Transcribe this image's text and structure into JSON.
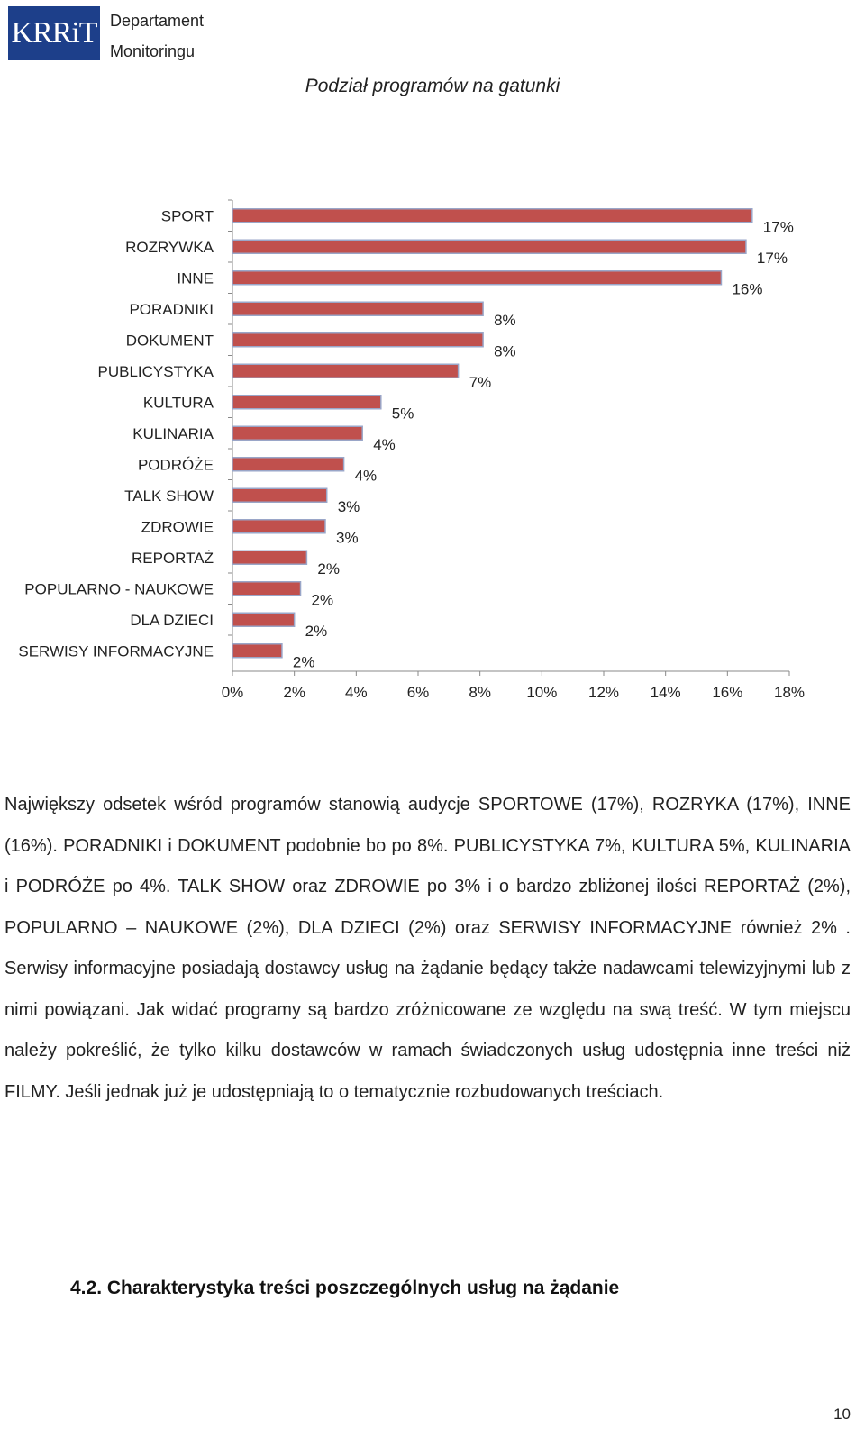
{
  "header": {
    "logo_text": "KRRiT",
    "dept_line1": "Departament",
    "dept_line2": "Monitoringu"
  },
  "doc_title": "Podział programów na gatunki",
  "chart_data": {
    "type": "bar",
    "orientation": "horizontal",
    "categories": [
      "SPORT",
      "ROZRYWKA",
      "INNE",
      "PORADNIKI",
      "DOKUMENT",
      "PUBLICYSTYKA",
      "KULTURA",
      "KULINARIA",
      "PODRÓŻE",
      "TALK SHOW",
      "ZDROWIE",
      "REPORTAŻ",
      "POPULARNO - NAUKOWE",
      "DLA DZIECI",
      "SERWISY INFORMACYJNE"
    ],
    "values": [
      16.8,
      16.6,
      15.8,
      8.1,
      8.1,
      7.3,
      4.8,
      4.2,
      3.6,
      3.05,
      3.0,
      2.4,
      2.2,
      2.0,
      1.6
    ],
    "data_labels": [
      "17%",
      "17%",
      "16%",
      "8%",
      "8%",
      "7%",
      "5%",
      "4%",
      "4%",
      "3%",
      "3%",
      "2%",
      "2%",
      "2%",
      "2%"
    ],
    "xlim": [
      0,
      18
    ],
    "xticks": [
      "0%",
      "2%",
      "4%",
      "6%",
      "8%",
      "10%",
      "12%",
      "14%",
      "16%",
      "18%"
    ],
    "grid": false,
    "legend": "none",
    "bar_color": "#c0504d",
    "bar_border": "#9aa6c8"
  },
  "paragraph": "Największy odsetek wśród programów stanowią audycje SPORTOWE (17%), ROZRYKA (17%), INNE (16%). PORADNIKI i DOKUMENT podobnie bo po 8%. PUBLICYSTYKA 7%, KULTURA 5%, KULINARIA i PODRÓŻE po 4%. TALK SHOW oraz ZDROWIE po 3% i o bardzo zbliżonej ilości REPORTAŻ (2%), POPULARNO – NAUKOWE (2%), DLA DZIECI (2%) oraz SERWISY INFORMACYJNE również 2% . Serwisy informacyjne posiadają dostawcy usług na żądanie będący także nadawcami telewizyjnymi lub z nimi powiązani. Jak widać programy są bardzo zróżnicowane ze względu na swą treść.  W tym miejscu należy pokreślić, że tylko kilku dostawców w ramach świadczonych usług udostępnia inne treści niż FILMY. Jeśli jednak już je udostępniają to o tematycznie rozbudowanych treściach.",
  "section_heading": "4.2. Charakterystyka treści poszczególnych usług na żądanie",
  "page_number": "10"
}
